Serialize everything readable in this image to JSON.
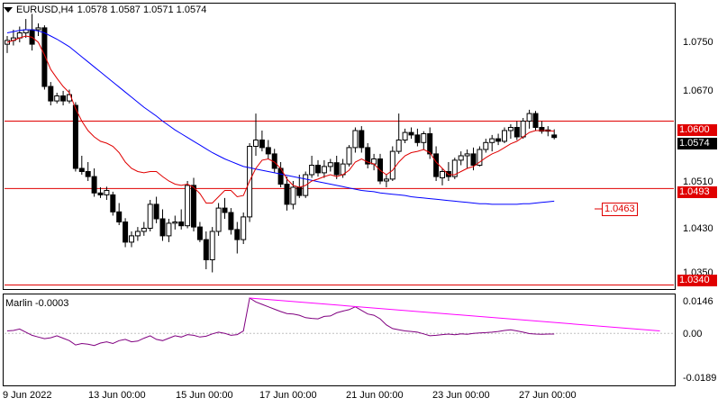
{
  "header": {
    "symbol": "EURUSD,H4",
    "ohlc": "1.0578 1.0587 1.0571 1.0574"
  },
  "indicator": {
    "label": "Marlin -0.0003"
  },
  "price_axis": [
    "1.0750",
    "1.0670",
    "1.0510",
    "1.0430",
    "1.0350"
  ],
  "indicator_axis": [
    "0.0146",
    "0.00",
    "-0.0189"
  ],
  "time_axis": [
    "9 Jun 2022",
    "13 Jun 00:00",
    "15 Jun 00:00",
    "17 Jun 00:00",
    "21 Jun 00:00",
    "23 Jun 00:00",
    "27 Jun 00:00"
  ],
  "levels": {
    "l0600": "1.0600",
    "l0493": "1.0493",
    "l0340": "1.0340",
    "target": "1.0463",
    "current": "1.0574"
  },
  "colors": {
    "level_line": "#e00000",
    "fast_ma": "#e00000",
    "slow_ma": "#0000ff",
    "indicator_line": "#800080",
    "trend_line": "#ff00ff",
    "current_tag": "#000000"
  },
  "chart_data": {
    "type": "candlestick",
    "price_range": [
      1.0335,
      1.0785
    ],
    "indicator_range": [
      -0.0189,
      0.0146
    ],
    "candles": [
      [
        1.0722,
        1.0735,
        1.0708,
        1.0728
      ],
      [
        1.0728,
        1.0745,
        1.072,
        1.0732
      ],
      [
        1.0732,
        1.075,
        1.0725,
        1.074
      ],
      [
        1.074,
        1.0762,
        1.0732,
        1.0745
      ],
      [
        1.0745,
        1.077,
        1.0712,
        1.0722
      ],
      [
        1.0745,
        1.0755,
        1.0735,
        1.0748
      ],
      [
        1.0748,
        1.0752,
        1.065,
        1.0655
      ],
      [
        1.0655,
        1.0662,
        1.0625,
        1.0632
      ],
      [
        1.0632,
        1.0645,
        1.0628,
        1.064
      ],
      [
        1.064,
        1.0648,
        1.0625,
        1.0632
      ],
      [
        1.0632,
        1.065,
        1.0628,
        1.0642
      ],
      [
        1.0625,
        1.063,
        1.052,
        1.0525
      ],
      [
        1.0525,
        1.0545,
        1.0515,
        1.052
      ],
      [
        1.052,
        1.0535,
        1.0505,
        1.0512
      ],
      [
        1.0512,
        1.0525,
        1.048,
        1.0486
      ],
      [
        1.0486,
        1.0495,
        1.0478,
        1.0483
      ],
      [
        1.0483,
        1.0496,
        1.0475,
        1.049
      ],
      [
        1.0483,
        1.0488,
        1.045,
        1.0456
      ],
      [
        1.0456,
        1.047,
        1.0435,
        1.044
      ],
      [
        1.044,
        1.0446,
        1.04,
        1.0408
      ],
      [
        1.0408,
        1.0425,
        1.04,
        1.0418
      ],
      [
        1.0418,
        1.0432,
        1.041,
        1.0425
      ],
      [
        1.0425,
        1.044,
        1.0418,
        1.043
      ],
      [
        1.043,
        1.0475,
        1.0425,
        1.0468
      ],
      [
        1.0468,
        1.048,
        1.0438,
        1.0445
      ],
      [
        1.0445,
        1.046,
        1.041,
        1.0418
      ],
      [
        1.0418,
        1.0445,
        1.0408,
        1.0438
      ],
      [
        1.0438,
        1.045,
        1.0428,
        1.044
      ],
      [
        1.044,
        1.046,
        1.0428,
        1.0434
      ],
      [
        1.0434,
        1.0505,
        1.043,
        1.0498
      ],
      [
        1.0498,
        1.051,
        1.0425,
        1.0432
      ],
      [
        1.0432,
        1.044,
        1.0408,
        1.0412
      ],
      [
        1.0412,
        1.0425,
        1.0365,
        1.038
      ],
      [
        1.038,
        1.0432,
        1.036,
        1.0425
      ],
      [
        1.0425,
        1.047,
        1.0418,
        1.0462
      ],
      [
        1.0462,
        1.0478,
        1.0445,
        1.0455
      ],
      [
        1.0455,
        1.0462,
        1.042,
        1.0428
      ],
      [
        1.0428,
        1.044,
        1.039,
        1.0412
      ],
      [
        1.0412,
        1.0455,
        1.0405,
        1.0448
      ],
      [
        1.0448,
        1.0565,
        1.044,
        1.056
      ],
      [
        1.056,
        1.0612,
        1.0545,
        1.057
      ],
      [
        1.057,
        1.0585,
        1.0552,
        1.0558
      ],
      [
        1.0558,
        1.057,
        1.054,
        1.0548
      ],
      [
        1.0548,
        1.0556,
        1.0518,
        1.0525
      ],
      [
        1.0525,
        1.0535,
        1.0495,
        1.05
      ],
      [
        1.05,
        1.0512,
        1.0458,
        1.0468
      ],
      [
        1.0468,
        1.0505,
        1.046,
        1.0495
      ],
      [
        1.0495,
        1.0515,
        1.0478,
        1.0482
      ],
      [
        1.0482,
        1.052,
        1.0478,
        1.0515
      ],
      [
        1.0515,
        1.0545,
        1.051,
        1.053
      ],
      [
        1.053,
        1.0538,
        1.0512,
        1.0518
      ],
      [
        1.0518,
        1.0538,
        1.051,
        1.0528
      ],
      [
        1.0528,
        1.054,
        1.052,
        1.0534
      ],
      [
        1.0534,
        1.0545,
        1.0508,
        1.0515
      ],
      [
        1.0515,
        1.054,
        1.051,
        1.0532
      ],
      [
        1.0532,
        1.0562,
        1.0528,
        1.0558
      ],
      [
        1.0558,
        1.059,
        1.055,
        1.0585
      ],
      [
        1.0585,
        1.0592,
        1.055,
        1.0558
      ],
      [
        1.0558,
        1.0565,
        1.0525,
        1.0532
      ],
      [
        1.0532,
        1.0548,
        1.0522,
        1.054
      ],
      [
        1.054,
        1.0548,
        1.05,
        1.0505
      ],
      [
        1.0505,
        1.0515,
        1.0495,
        1.0508
      ],
      [
        1.0508,
        1.056,
        1.0505,
        1.0552
      ],
      [
        1.0552,
        1.0612,
        1.0548,
        1.057
      ],
      [
        1.057,
        1.0588,
        1.0565,
        1.0582
      ],
      [
        1.0582,
        1.059,
        1.0572,
        1.0578
      ],
      [
        1.0578,
        1.0588,
        1.056,
        1.0566
      ],
      [
        1.0566,
        1.0584,
        1.0555,
        1.058
      ],
      [
        1.058,
        1.059,
        1.054,
        1.0548
      ],
      [
        1.0548,
        1.056,
        1.0505,
        1.0512
      ],
      [
        1.051,
        1.0525,
        1.0498,
        1.052
      ],
      [
        1.052,
        1.0535,
        1.0505,
        1.0512
      ],
      [
        1.0512,
        1.0542,
        1.0508,
        1.0538
      ],
      [
        1.0538,
        1.0552,
        1.053,
        1.0545
      ],
      [
        1.0545,
        1.0555,
        1.0525,
        1.0548
      ],
      [
        1.0548,
        1.0558,
        1.0522,
        1.053
      ],
      [
        1.053,
        1.056,
        1.0528,
        1.0555
      ],
      [
        1.0555,
        1.0572,
        1.055,
        1.0566
      ],
      [
        1.0566,
        1.0578,
        1.0552,
        1.0572
      ],
      [
        1.0572,
        1.058,
        1.0562,
        1.0568
      ],
      [
        1.0568,
        1.059,
        1.0565,
        1.0585
      ],
      [
        1.0585,
        1.0595,
        1.0572,
        1.059
      ],
      [
        1.059,
        1.06,
        1.057,
        1.0575
      ],
      [
        1.0575,
        1.0605,
        1.0572,
        1.06
      ],
      [
        1.06,
        1.0618,
        1.0588,
        1.0612
      ],
      [
        1.0612,
        1.0616,
        1.0585,
        1.059
      ],
      [
        1.059,
        1.06,
        1.058,
        1.0584
      ],
      [
        1.0584,
        1.0592,
        1.0576,
        1.0586
      ],
      [
        1.0578,
        1.0587,
        1.0571,
        1.0574
      ]
    ],
    "fast_ma": [
      1.0725,
      1.0728,
      1.0732,
      1.0735,
      1.0733,
      1.0725,
      1.0705,
      1.0682,
      1.0668,
      1.0655,
      1.0645,
      1.062,
      1.06,
      1.0585,
      1.0575,
      1.0568,
      1.0565,
      1.056,
      1.055,
      1.0535,
      1.0525,
      1.052,
      1.0518,
      1.052,
      1.052,
      1.0512,
      1.0505,
      1.05,
      1.0498,
      1.05,
      1.0495,
      1.0485,
      1.047,
      1.047,
      1.048,
      1.049,
      1.049,
      1.048,
      1.0482,
      1.0505,
      1.0525,
      1.0538,
      1.054,
      1.0535,
      1.0525,
      1.0508,
      1.0498,
      1.0495,
      1.0498,
      1.0505,
      1.0508,
      1.0512,
      1.0515,
      1.0512,
      1.0515,
      1.0522,
      1.0535,
      1.054,
      1.0535,
      1.0532,
      1.0522,
      1.0515,
      1.0522,
      1.0535,
      1.0545,
      1.055,
      1.0552,
      1.0555,
      1.055,
      1.0535,
      1.0525,
      1.0515,
      1.0515,
      1.052,
      1.0525,
      1.0528,
      1.0535,
      1.0542,
      1.0548,
      1.0552,
      1.0558,
      1.0564,
      1.0568,
      1.0575,
      1.0582,
      1.0585,
      1.0585,
      1.0585,
      1.0584
    ],
    "slow_ma": [
      1.074,
      1.0742,
      1.0744,
      1.0745,
      1.0745,
      1.0743,
      1.074,
      1.0735,
      1.073,
      1.0724,
      1.0718,
      1.071,
      1.0702,
      1.0694,
      1.0686,
      1.0678,
      1.067,
      1.0662,
      1.0654,
      1.0646,
      1.0638,
      1.063,
      1.0622,
      1.0615,
      1.0608,
      1.06,
      1.0593,
      1.0586,
      1.058,
      1.0574,
      1.0568,
      1.0562,
      1.0556,
      1.055,
      1.0545,
      1.054,
      1.0536,
      1.0532,
      1.0528,
      1.0526,
      1.0524,
      1.0522,
      1.052,
      1.0518,
      1.0516,
      1.0514,
      1.0512,
      1.051,
      1.0508,
      1.0506,
      1.0504,
      1.0502,
      1.05,
      1.0498,
      1.0496,
      1.0494,
      1.0492,
      1.049,
      1.0489,
      1.0488,
      1.0486,
      1.0485,
      1.0484,
      1.0483,
      1.0482,
      1.048,
      1.0479,
      1.0478,
      1.0477,
      1.0476,
      1.0475,
      1.0474,
      1.0473,
      1.0472,
      1.0471,
      1.047,
      1.0469,
      1.0469,
      1.0468,
      1.0468,
      1.0468,
      1.0468,
      1.0468,
      1.0469,
      1.0469,
      1.047,
      1.0471,
      1.0472,
      1.0473
    ],
    "indicator": [
      0.001,
      0.0012,
      0.0018,
      0.0005,
      -0.0008,
      -0.0015,
      -0.0022,
      -0.0018,
      -0.001,
      -0.002,
      -0.003,
      -0.0048,
      -0.0042,
      -0.0045,
      -0.005,
      -0.004,
      -0.0035,
      -0.0042,
      -0.003,
      -0.0025,
      -0.0035,
      -0.0032,
      -0.002,
      -0.001,
      -0.0025,
      -0.003,
      -0.002,
      -0.001,
      -0.0015,
      -0.0005,
      -0.0008,
      -0.0015,
      -0.0012,
      -0.0002,
      0.0005,
      0.0,
      -0.0008,
      -0.0005,
      0.001,
      0.0146,
      0.013,
      0.012,
      0.011,
      0.01,
      0.009,
      0.0082,
      0.008,
      0.0075,
      0.0065,
      0.0062,
      0.006,
      0.007,
      0.0072,
      0.0085,
      0.0092,
      0.0098,
      0.011,
      0.0095,
      0.008,
      0.0075,
      0.006,
      0.0035,
      0.002,
      0.0015,
      0.001,
      0.0008,
      0.0005,
      -0.0002,
      -0.001,
      -0.0008,
      -0.0005,
      -0.0003,
      -0.0006,
      -0.0002,
      -0.0004,
      0.0,
      0.0002,
      0.0003,
      0.0005,
      0.0008,
      0.0012,
      0.0015,
      0.001,
      0.0005,
      -0.0001,
      -0.0003,
      -0.0004,
      -0.0003,
      -0.0003
    ],
    "trend_line": {
      "from_index": 39,
      "from_value": 0.0146,
      "to_index": 105,
      "to_value": 0.001
    }
  }
}
